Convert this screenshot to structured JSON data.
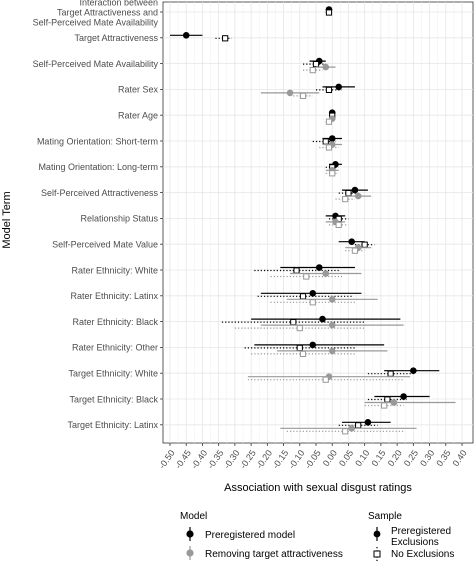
{
  "chart_data": {
    "type": "scatter",
    "subtype": "forest-plot",
    "xlabel": "Association with sexual disgust ratings",
    "ylabel": "Model Term",
    "xlim": [
      -0.52,
      0.42
    ],
    "x_ticks": [
      -0.5,
      -0.45,
      -0.4,
      -0.35,
      -0.3,
      -0.25,
      -0.2,
      -0.15,
      -0.1,
      -0.05,
      0.0,
      0.05,
      0.1,
      0.15,
      0.2,
      0.25,
      0.3,
      0.35,
      0.4
    ],
    "x_tick_labels": [
      "-0.50",
      "-0.45",
      "-0.40",
      "-0.35",
      "-0.30",
      "-0.25",
      "-0.20",
      "-0.15",
      "-0.10",
      "-0.05",
      "0.00",
      "0.05",
      "0.10",
      "0.15",
      "0.20",
      "0.25",
      "0.30",
      "0.35",
      "0.40"
    ],
    "grid": true,
    "terms": [
      "Interaction between\nTarget Attractiveness and\nSelf-Perceived Mate Availability",
      "Target Attractiveness",
      "Self-Perceived Mate Availability",
      "Rater Sex",
      "Rater Age",
      "Mating Orientation: Short-term",
      "Mating Orientation: Long-term",
      "Self-Perceived Attractiveness",
      "Relationship Status",
      "Self-Perceived Mate Value",
      "Rater Ethnicity: White",
      "Rater Ethnicity: Latinx",
      "Rater Ethnicity: Black",
      "Rater Ethnicity: Other",
      "Target Ethnicity: White",
      "Target Ethnicity: Black",
      "Target Ethnicity: Latinx"
    ],
    "legend": {
      "position": "bottom",
      "model_title": "Model",
      "model_items": [
        "Preregistered model",
        "Removing target attractiveness"
      ],
      "sample_title": "Sample",
      "sample_items": [
        "Preregistered\nExclusions",
        "No Exclusions"
      ]
    },
    "series": [
      {
        "model": "Preregistered model",
        "sample": "Preregistered Exclusions",
        "color": "#000000",
        "estimates": [
          -0.01,
          -0.45,
          -0.04,
          0.02,
          0.0,
          0.0,
          0.01,
          0.07,
          0.01,
          0.06,
          -0.04,
          -0.06,
          -0.03,
          -0.06,
          0.25,
          0.22,
          0.11
        ],
        "lower": [
          -0.02,
          -0.5,
          -0.07,
          -0.03,
          -0.01,
          -0.03,
          -0.01,
          0.03,
          -0.02,
          0.02,
          -0.16,
          -0.22,
          -0.25,
          -0.24,
          0.16,
          0.13,
          0.03
        ],
        "upper": [
          0.0,
          -0.4,
          -0.02,
          0.07,
          0.01,
          0.03,
          0.03,
          0.11,
          0.04,
          0.1,
          0.07,
          0.09,
          0.21,
          0.16,
          0.33,
          0.3,
          0.18
        ]
      },
      {
        "model": "Preregistered model",
        "sample": "No Exclusions",
        "color": "#000000",
        "estimates": [
          -0.01,
          -0.33,
          -0.05,
          -0.01,
          0.0,
          -0.02,
          0.0,
          0.05,
          0.02,
          0.1,
          -0.11,
          -0.09,
          -0.12,
          -0.1,
          0.18,
          0.17,
          0.08
        ],
        "lower": [
          -0.02,
          -0.36,
          -0.09,
          -0.05,
          -0.01,
          -0.06,
          -0.02,
          0.02,
          -0.01,
          0.07,
          -0.24,
          -0.23,
          -0.34,
          -0.27,
          0.11,
          0.11,
          0.02
        ],
        "upper": [
          0.0,
          -0.31,
          -0.02,
          0.03,
          0.01,
          0.01,
          0.02,
          0.08,
          0.05,
          0.13,
          0.02,
          0.06,
          0.1,
          0.07,
          0.25,
          0.23,
          0.14
        ]
      },
      {
        "model": "Removing target attractiveness",
        "sample": "Preregistered Exclusions",
        "color": "#999999",
        "estimates": [
          null,
          null,
          -0.02,
          -0.13,
          0.0,
          0.0,
          0.0,
          0.08,
          0.01,
          0.08,
          -0.02,
          0.0,
          0.0,
          0.0,
          -0.01,
          0.19,
          0.06
        ],
        "lower": [
          null,
          null,
          -0.05,
          -0.22,
          -0.01,
          -0.03,
          -0.02,
          0.04,
          -0.02,
          0.04,
          -0.13,
          -0.14,
          -0.22,
          -0.17,
          -0.26,
          0.1,
          -0.16
        ],
        "upper": [
          null,
          null,
          0.01,
          -0.04,
          0.01,
          0.03,
          0.02,
          0.12,
          0.04,
          0.12,
          0.09,
          0.14,
          0.22,
          0.17,
          0.24,
          0.38,
          0.26
        ]
      },
      {
        "model": "Removing target attractiveness",
        "sample": "No Exclusions",
        "color": "#999999",
        "estimates": [
          null,
          null,
          -0.06,
          -0.09,
          -0.01,
          -0.01,
          0.0,
          0.04,
          0.02,
          0.07,
          -0.08,
          -0.06,
          -0.1,
          -0.09,
          -0.02,
          0.16,
          0.04
        ],
        "lower": [
          null,
          null,
          -0.09,
          -0.12,
          -0.02,
          -0.04,
          -0.02,
          0.01,
          -0.01,
          0.04,
          -0.19,
          -0.19,
          -0.3,
          -0.25,
          -0.26,
          0.1,
          -0.14
        ],
        "upper": [
          null,
          null,
          -0.03,
          -0.06,
          0.0,
          0.02,
          0.02,
          0.07,
          0.05,
          0.1,
          0.03,
          0.07,
          0.1,
          0.07,
          0.22,
          0.22,
          0.22
        ]
      }
    ]
  }
}
